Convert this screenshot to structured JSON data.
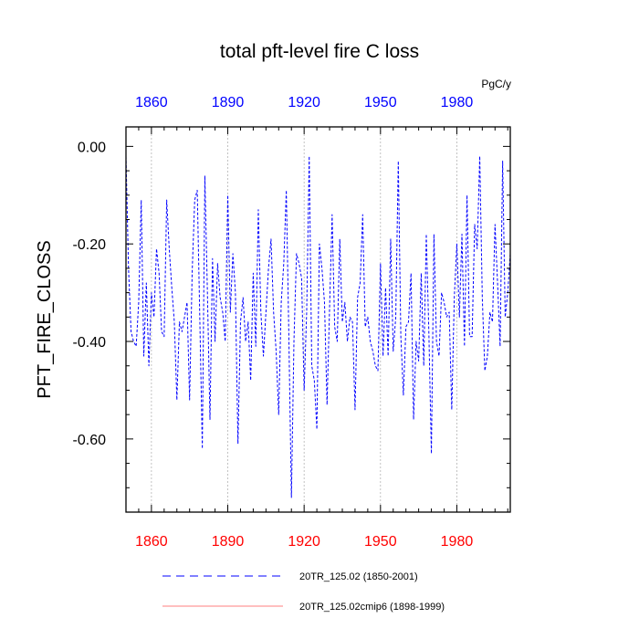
{
  "chart_data": {
    "type": "line",
    "title": "total pft-level fire C loss",
    "units": "PgC/y",
    "ylabel": "PFT_FIRE_CLOSS",
    "xlabel": "",
    "xlim": [
      1850,
      2001
    ],
    "ylim": [
      -0.75,
      0.04
    ],
    "yticks": [
      0.0,
      -0.2,
      -0.4,
      -0.6
    ],
    "ytick_labels": [
      "0.00",
      "-0.20",
      "-0.40",
      "-0.60"
    ],
    "yminor_step": 0.05,
    "xticks": [
      1860,
      1890,
      1920,
      1950,
      1980
    ],
    "xtick_labels": [
      "1860",
      "1890",
      "1920",
      "1950",
      "1980"
    ],
    "xminor_step": 5,
    "top_tick_color": "#0000ff",
    "bottom_tick_color": "#ff0000",
    "grid_x": true,
    "series": [
      {
        "name": "20TR_125.02 (1850-2001)",
        "color": "#0000ff",
        "style": "dashed",
        "x_start": 1850,
        "values": [
          -0.02,
          -0.25,
          -0.38,
          -0.4,
          -0.41,
          -0.32,
          -0.11,
          -0.43,
          -0.28,
          -0.45,
          -0.3,
          -0.35,
          -0.21,
          -0.26,
          -0.38,
          -0.39,
          -0.11,
          -0.21,
          -0.29,
          -0.36,
          -0.52,
          -0.36,
          -0.38,
          -0.35,
          -0.32,
          -0.52,
          -0.26,
          -0.11,
          -0.09,
          -0.35,
          -0.62,
          -0.06,
          -0.3,
          -0.56,
          -0.23,
          -0.4,
          -0.24,
          -0.31,
          -0.34,
          -0.4,
          -0.1,
          -0.34,
          -0.22,
          -0.3,
          -0.61,
          -0.36,
          -0.31,
          -0.4,
          -0.36,
          -0.48,
          -0.26,
          -0.41,
          -0.13,
          -0.34,
          -0.43,
          -0.34,
          -0.25,
          -0.19,
          -0.34,
          -0.42,
          -0.55,
          -0.32,
          -0.24,
          -0.09,
          -0.39,
          -0.72,
          -0.4,
          -0.22,
          -0.24,
          -0.27,
          -0.5,
          -0.34,
          -0.02,
          -0.45,
          -0.48,
          -0.58,
          -0.2,
          -0.25,
          -0.32,
          -0.53,
          -0.33,
          -0.14,
          -0.37,
          -0.4,
          -0.19,
          -0.36,
          -0.32,
          -0.4,
          -0.35,
          -0.36,
          -0.54,
          -0.31,
          -0.28,
          -0.14,
          -0.37,
          -0.35,
          -0.4,
          -0.42,
          -0.45,
          -0.46,
          -0.24,
          -0.43,
          -0.29,
          -0.43,
          -0.19,
          -0.42,
          -0.35,
          -0.03,
          -0.39,
          -0.51,
          -0.37,
          -0.36,
          -0.26,
          -0.56,
          -0.4,
          -0.44,
          -0.26,
          -0.45,
          -0.18,
          -0.38,
          -0.63,
          -0.18,
          -0.4,
          -0.43,
          -0.3,
          -0.32,
          -0.35,
          -0.34,
          -0.54,
          -0.31,
          -0.2,
          -0.35,
          -0.18,
          -0.41,
          -0.1,
          -0.39,
          -0.39,
          -0.16,
          -0.21,
          -0.02,
          -0.31,
          -0.46,
          -0.43,
          -0.34,
          -0.36,
          -0.16,
          -0.28,
          -0.41,
          -0.03,
          -0.35,
          -0.3,
          -0.22
        ]
      },
      {
        "name": "20TR_125.02cmip6 (1898-1999)",
        "color": "#ff0000",
        "style": "solid",
        "values": []
      }
    ]
  }
}
